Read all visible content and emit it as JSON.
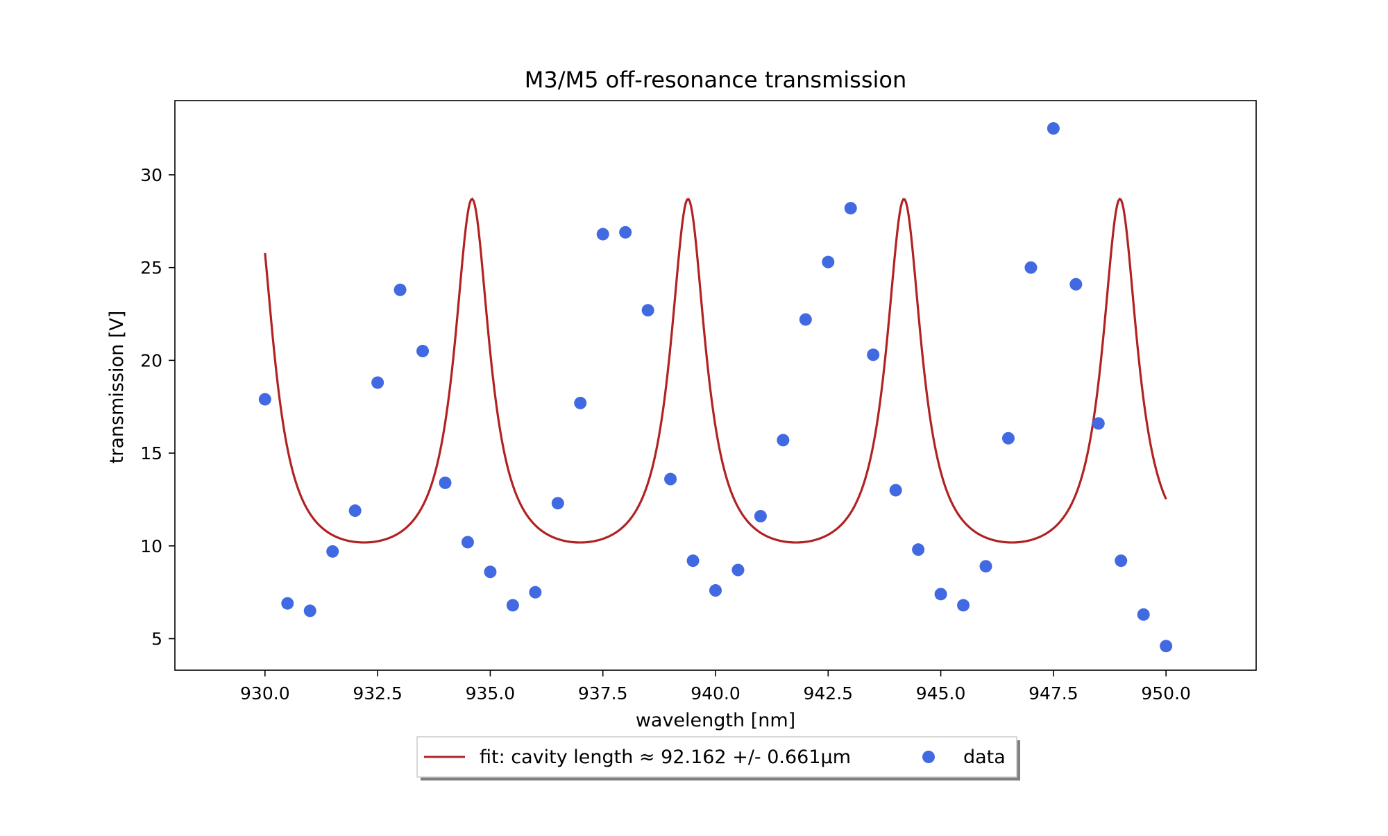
{
  "chart_data": {
    "type": "scatter",
    "title": "M3/M5 off-resonance transmission",
    "xlabel": "wavelength [nm]",
    "ylabel": "transmission [V]",
    "xlim": [
      928.0,
      952.0
    ],
    "ylim": [
      3.3,
      34.0
    ],
    "x_ticks": [
      930.0,
      932.5,
      935.0,
      937.5,
      940.0,
      942.5,
      945.0,
      947.5,
      950.0
    ],
    "x_tick_labels": [
      "930.0",
      "932.5",
      "935.0",
      "937.5",
      "940.0",
      "942.5",
      "945.0",
      "947.5",
      "950.0"
    ],
    "y_ticks": [
      5,
      10,
      15,
      20,
      25,
      30
    ],
    "y_tick_labels": [
      "5",
      "10",
      "15",
      "20",
      "25",
      "30"
    ],
    "grid": false,
    "legend_placement": "below plot, center",
    "series": [
      {
        "name": "data",
        "kind": "scatter",
        "color": "#4169e1",
        "x": [
          930.0,
          930.5,
          931.0,
          931.5,
          932.0,
          932.5,
          933.0,
          933.5,
          934.0,
          934.5,
          935.0,
          935.5,
          936.0,
          936.5,
          937.0,
          937.5,
          938.0,
          938.5,
          939.0,
          939.5,
          940.0,
          940.5,
          941.0,
          941.5,
          942.0,
          942.5,
          943.0,
          943.5,
          944.0,
          944.5,
          945.0,
          945.5,
          946.0,
          946.5,
          947.0,
          947.5,
          948.0,
          948.5,
          949.0,
          949.5,
          950.0
        ],
        "y": [
          17.9,
          6.9,
          6.5,
          9.7,
          11.9,
          18.8,
          23.8,
          20.5,
          13.4,
          10.2,
          8.6,
          6.8,
          7.5,
          12.3,
          17.7,
          26.8,
          26.9,
          22.7,
          13.6,
          9.2,
          7.6,
          8.7,
          11.6,
          15.7,
          22.2,
          25.3,
          28.2,
          20.3,
          13.0,
          9.8,
          7.4,
          6.8,
          8.9,
          15.8,
          25.0,
          32.5,
          24.1,
          16.6,
          9.2,
          6.3,
          4.6
        ]
      },
      {
        "name": "fit: cavity length ≈ 92.162 +/- 0.661µm",
        "kind": "line",
        "color": "#b22222",
        "model": {
          "type": "airy",
          "offset": 8.33,
          "amplitude": 20.37,
          "finesse_coefficient": 10.0,
          "cavity_length_um": 92.162,
          "phase_rad": 0.8,
          "x_range": [
            930.0,
            950.0
          ]
        }
      }
    ]
  }
}
